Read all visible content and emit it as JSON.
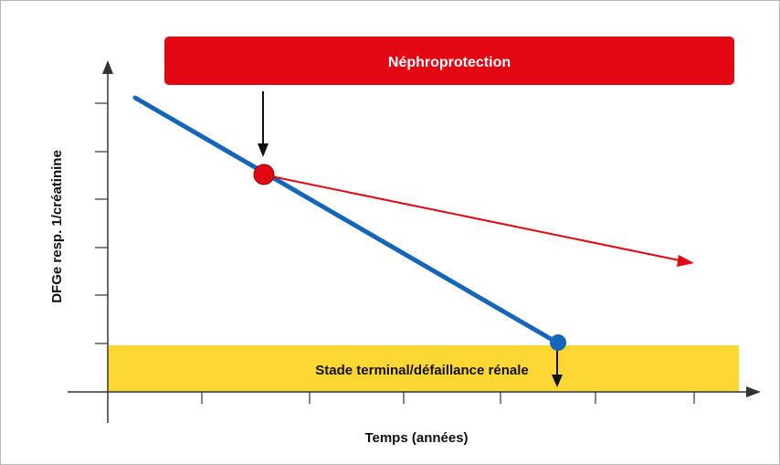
{
  "banner": {
    "label": "Néphroprotection",
    "color": "#e30613",
    "text_color": "#ffffff"
  },
  "zone": {
    "label": "Stade terminal/défaillance rénale",
    "color": "#fdd835",
    "text_color": "#111111"
  },
  "axes": {
    "x_label": "Temps (années)",
    "y_label": "DFGe resp. 1/créatinine",
    "color": "#333333"
  },
  "lines": {
    "untreated_color": "#1565b8",
    "treated_color": "#e30613"
  },
  "markers": {
    "intervention_point_color": "#e30613",
    "endstage_point_color": "#1565b8",
    "arrow_color": "#111111"
  }
}
